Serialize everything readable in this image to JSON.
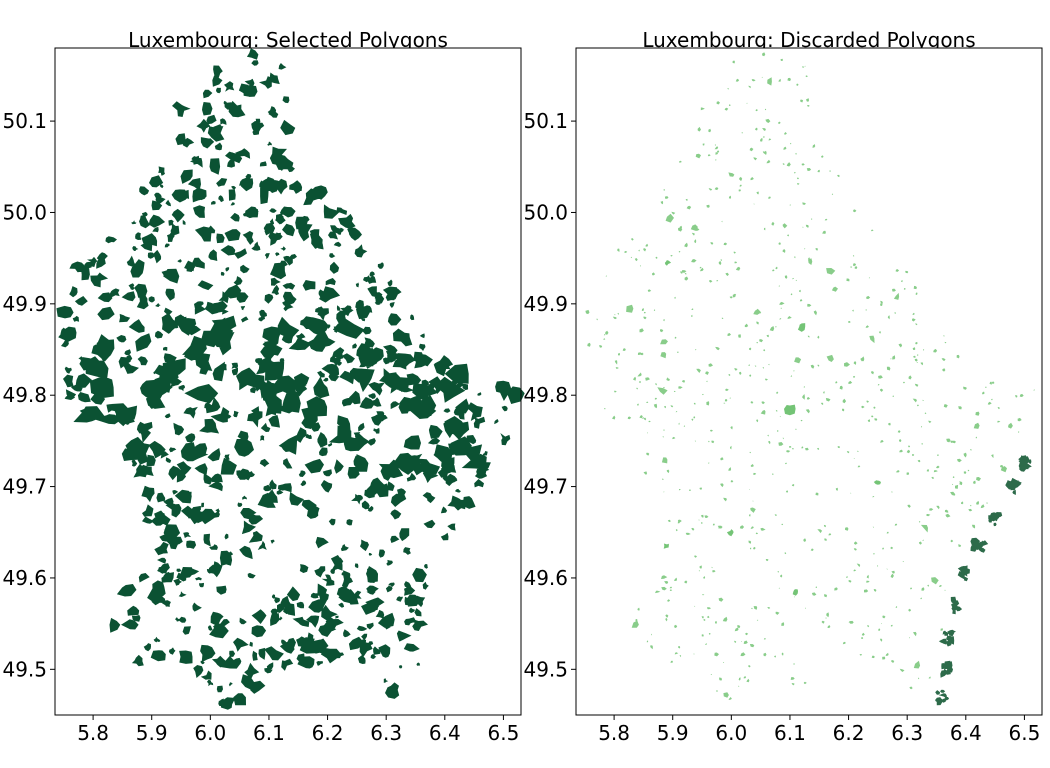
{
  "chart_data": [
    {
      "type": "map",
      "title": "Luxembourg: Selected Polygons",
      "xlim": [
        5.735,
        6.53
      ],
      "ylim": [
        49.45,
        50.18
      ],
      "xticks": [
        5.8,
        5.9,
        6.0,
        6.1,
        6.2,
        6.3,
        6.4,
        6.5
      ],
      "yticks": [
        49.5,
        49.6,
        49.7,
        49.8,
        49.9,
        50.0,
        50.1
      ],
      "xtick_labels": [
        "5.8",
        "5.9",
        "6.0",
        "6.1",
        "6.2",
        "6.3",
        "6.4",
        "6.5"
      ],
      "ytick_labels": [
        "49.5",
        "49.6",
        "49.7",
        "49.8",
        "49.9",
        "50.0",
        "50.1"
      ],
      "fill_color": "#0b5233",
      "grid": false
    },
    {
      "type": "map",
      "title": "Luxembourg: Discarded Polygons",
      "xlim": [
        5.735,
        6.53
      ],
      "ylim": [
        49.45,
        50.18
      ],
      "xticks": [
        5.8,
        5.9,
        6.0,
        6.1,
        6.2,
        6.3,
        6.4,
        6.5
      ],
      "yticks": [
        49.5,
        49.6,
        49.7,
        49.8,
        49.9,
        50.0,
        50.1
      ],
      "xtick_labels": [
        "5.8",
        "5.9",
        "6.0",
        "6.1",
        "6.2",
        "6.3",
        "6.4",
        "6.5"
      ],
      "ytick_labels": [
        "49.5",
        "49.6",
        "49.7",
        "49.8",
        "49.9",
        "50.0",
        "50.1"
      ],
      "fill_color": "#74c476",
      "accent_color": "#2d6b4a",
      "grid": false
    }
  ]
}
